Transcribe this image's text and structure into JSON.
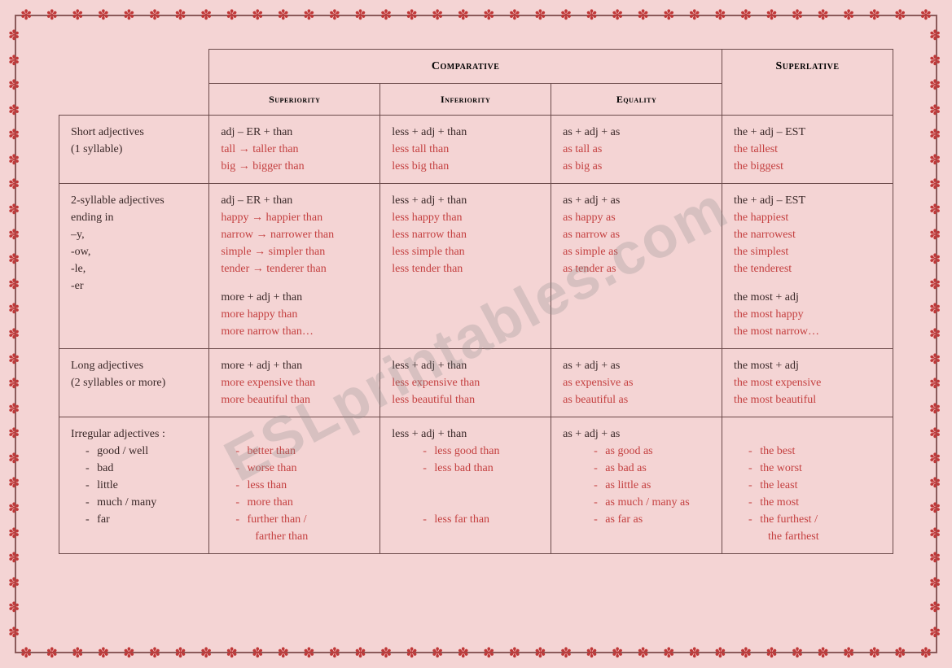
{
  "watermark": "ESLprintables.com",
  "headers": {
    "comparative": "Comparative",
    "superlative": "Superlative",
    "superiority": "Superiority",
    "inferiority": "Inferiority",
    "equality": "Equality"
  },
  "rows": {
    "short": {
      "label_l1": "Short adjectives",
      "label_l2": " (1 syllable)",
      "sup_l1": "adj – ER  + than",
      "sup_l2": "tall → taller than",
      "sup_l3": "big → bigger than",
      "inf_l1": "less + adj + than",
      "inf_l2": "less tall than",
      "inf_l3": "less big than",
      "eq_l1": "as + adj + as",
      "eq_l2": "as tall as",
      "eq_l3": "as big as",
      "spl_l1": "the + adj – EST",
      "spl_l2": "the tallest",
      "spl_l3": "the biggest"
    },
    "two": {
      "label_l1": "2-syllable adjectives",
      "label_l2": "ending in",
      "label_l3": " –y,",
      "label_l4": " -ow,",
      "label_l5": "-le,",
      "label_l6": " -er",
      "sup_l1": "adj – ER + than",
      "sup_l2": "happy → happier than",
      "sup_l3": "narrow → narrower than",
      "sup_l4": "simple → simpler than",
      "sup_l5": "tender → tenderer than",
      "sup_l6": "more + adj + than",
      "sup_l7": "more happy than",
      "sup_l8": "more narrow than…",
      "inf_l1": "less + adj + than",
      "inf_l2": "less happy than",
      "inf_l3": "less narrow than",
      "inf_l4": "less simple than",
      "inf_l5": "less tender than",
      "eq_l1": "as + adj + as",
      "eq_l2": "as happy as",
      "eq_l3": "as narrow as",
      "eq_l4": "as simple as",
      "eq_l5": "as tender as",
      "spl_l1": "the + adj – EST",
      "spl_l2": "the happiest",
      "spl_l3": "the narrowest",
      "spl_l4": "the simplest",
      "spl_l5": "the tenderest",
      "spl_l6": "the most + adj",
      "spl_l7": "the most happy",
      "spl_l8": "the most narrow…"
    },
    "long": {
      "label_l1": "Long adjectives",
      "label_l2": "(2 syllables or more)",
      "sup_l1": "more + adj + than",
      "sup_l2": "more expensive than",
      "sup_l3": "more beautiful than",
      "inf_l1": "less + adj + than",
      "inf_l2": "less expensive than",
      "inf_l3": "less beautiful than",
      "eq_l1": "as + adj + as",
      "eq_l2": "as expensive as",
      "eq_l3": "as beautiful as",
      "spl_l1": "the most + adj",
      "spl_l2": "the most expensive",
      "spl_l3": "the most beautiful"
    },
    "irr": {
      "label_l1": "Irregular adjectives :",
      "label_i1": "good / well",
      "label_i2": "bad",
      "label_i3": "little",
      "label_i4": "much / many",
      "label_i5": "far",
      "sup_i1": "better than",
      "sup_i2": "worse than",
      "sup_i3": "less than",
      "sup_i4": "more than",
      "sup_i5": "further than /",
      "sup_i6": "farther than",
      "inf_l1": "less + adj + than",
      "inf_i1": "less good than",
      "inf_i2": "less bad than",
      "inf_i5": "less far than",
      "eq_l1": "as + adj + as",
      "eq_i1": "as good as",
      "eq_i2": "as bad as",
      "eq_i3": "as little as",
      "eq_i4": "as much / many as",
      "eq_i5": "as far as",
      "spl_i1": "the best",
      "spl_i2": "the worst",
      "spl_i3": "the least",
      "spl_i4": "the most",
      "spl_i5": "the furthest /",
      "spl_i6": "the farthest"
    }
  }
}
